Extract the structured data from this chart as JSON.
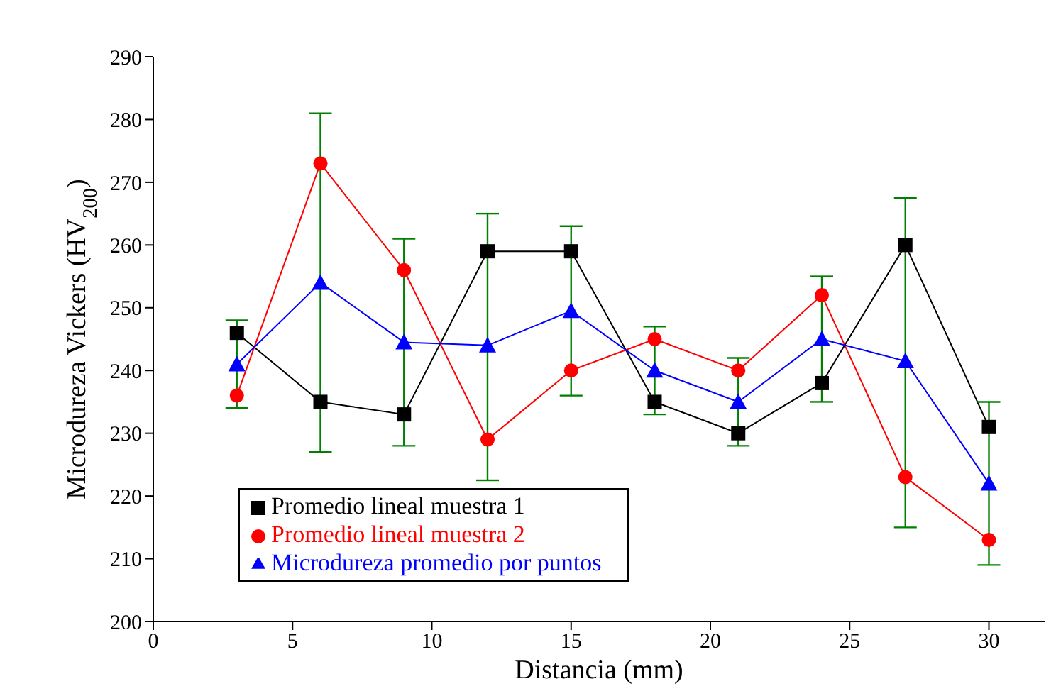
{
  "chart_data": {
    "type": "line",
    "xlabel": "Distancia (mm)",
    "ylabel": "Microdureza Vickers (HV$_{200}$)",
    "x": [
      3,
      6,
      9,
      12,
      15,
      18,
      21,
      24,
      27,
      30
    ],
    "xlim": [
      0,
      32
    ],
    "xticks": [
      0,
      5,
      10,
      15,
      20,
      25,
      30
    ],
    "ylim": [
      200,
      290
    ],
    "yticks": [
      200,
      210,
      220,
      230,
      240,
      250,
      260,
      270,
      280,
      290
    ],
    "grid": false,
    "legend": "bottom left",
    "series": [
      {
        "name": "Promedio lineal muestra 1",
        "color": "#000000",
        "marker": "square",
        "values": [
          246,
          235,
          233,
          259,
          259,
          235,
          230,
          238,
          260,
          231
        ]
      },
      {
        "name": "Promedio lineal muestra 2",
        "color": "#ff0000",
        "marker": "circle",
        "values": [
          236,
          273,
          256,
          229,
          240,
          245,
          240,
          252,
          223,
          213
        ]
      },
      {
        "name": "Microdureza promedio por puntos",
        "color": "#0000ff",
        "marker": "triangle",
        "values": [
          241,
          254,
          244.5,
          244,
          249.5,
          240,
          235,
          245,
          241.5,
          222
        ],
        "errors": [
          [
            234,
            248
          ],
          [
            227,
            281
          ],
          [
            228,
            261
          ],
          [
            222.5,
            265
          ],
          [
            236,
            263
          ],
          [
            233,
            247
          ],
          [
            228,
            242
          ],
          [
            235,
            255
          ],
          [
            215,
            267.5
          ],
          [
            209,
            235
          ]
        ]
      }
    ]
  }
}
